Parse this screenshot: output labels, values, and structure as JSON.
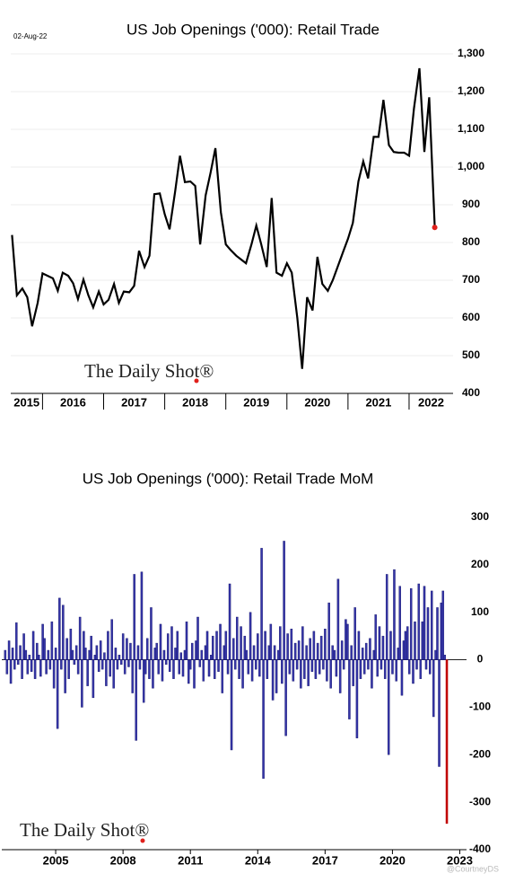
{
  "chart_data": [
    {
      "type": "line",
      "title": "US Job Openings ('000): Retail Trade",
      "date": "02-Aug-22",
      "watermark": "The Daily Shot®",
      "color": "#000000",
      "marker_color": "#e0201b",
      "grid": true,
      "x": [
        2015.5,
        2015.58,
        2015.67,
        2015.75,
        2015.83,
        2015.92,
        2016.0,
        2016.08,
        2016.17,
        2016.25,
        2016.33,
        2016.42,
        2016.5,
        2016.58,
        2016.67,
        2016.75,
        2016.83,
        2016.92,
        2017.0,
        2017.08,
        2017.17,
        2017.25,
        2017.33,
        2017.42,
        2017.5,
        2017.58,
        2017.67,
        2017.75,
        2017.83,
        2017.92,
        2018.0,
        2018.08,
        2018.17,
        2018.25,
        2018.33,
        2018.42,
        2018.5,
        2018.58,
        2018.67,
        2018.75,
        2018.83,
        2018.92,
        2019.0,
        2019.08,
        2019.17,
        2019.25,
        2019.33,
        2019.42,
        2019.5,
        2019.58,
        2019.67,
        2019.75,
        2019.83,
        2019.92,
        2020.0,
        2020.08,
        2020.17,
        2020.25,
        2020.33,
        2020.42,
        2020.5,
        2020.58,
        2020.67,
        2020.75,
        2020.83,
        2020.92,
        2021.0,
        2021.08,
        2021.17,
        2021.25,
        2021.33,
        2021.42,
        2021.5,
        2021.58,
        2021.67,
        2021.75,
        2021.83,
        2021.92,
        2022.0,
        2022.08,
        2022.17,
        2022.25,
        2022.33,
        2022.42
      ],
      "values": [
        820,
        660,
        678,
        655,
        578,
        640,
        718,
        712,
        705,
        672,
        720,
        712,
        692,
        650,
        702,
        660,
        628,
        670,
        636,
        648,
        690,
        640,
        670,
        668,
        685,
        778,
        735,
        765,
        928,
        930,
        875,
        835,
        935,
        1030,
        960,
        962,
        950,
        795,
        925,
        985,
        1050,
        880,
        795,
        780,
        765,
        755,
        745,
        795,
        845,
        795,
        735,
        918,
        720,
        712,
        745,
        720,
        600,
        465,
        655,
        620,
        762,
        690,
        672,
        700,
        735,
        775,
        810,
        852,
        962,
        1015,
        970,
        1080,
        1080,
        1178,
        1058,
        1040,
        1038,
        1038,
        1030,
        1155,
        1262,
        1040,
        1185,
        840
      ],
      "xlim": [
        2015.48,
        2022.72
      ],
      "xticks": [
        2015,
        2016,
        2017,
        2018,
        2019,
        2020,
        2021,
        2022
      ],
      "ylim": [
        400,
        1300
      ],
      "yticks": [
        400,
        500,
        600,
        700,
        800,
        900,
        {
          "value": 1000,
          "label": "1,000"
        },
        {
          "value": 1100,
          "label": "1,100"
        },
        {
          "value": 1200,
          "label": "1,200"
        },
        {
          "value": 1300,
          "label": "1,300"
        }
      ]
    },
    {
      "type": "bar",
      "title": "US Job Openings ('000): Retail Trade MoM",
      "watermark": "The Daily Shot®",
      "credit": "@CourtneyDS",
      "color": "#3535a8",
      "last_color": "#c00000",
      "grid": false,
      "x": [
        2002.75,
        2002.83,
        2002.92,
        2003.0,
        2003.08,
        2003.17,
        2003.25,
        2003.33,
        2003.42,
        2003.5,
        2003.58,
        2003.67,
        2003.75,
        2003.83,
        2003.92,
        2004.0,
        2004.08,
        2004.17,
        2004.25,
        2004.33,
        2004.42,
        2004.5,
        2004.58,
        2004.67,
        2004.75,
        2004.83,
        2004.92,
        2005.0,
        2005.08,
        2005.17,
        2005.25,
        2005.33,
        2005.42,
        2005.5,
        2005.58,
        2005.67,
        2005.75,
        2005.83,
        2005.92,
        2006.0,
        2006.08,
        2006.17,
        2006.25,
        2006.33,
        2006.42,
        2006.5,
        2006.58,
        2006.67,
        2006.75,
        2006.83,
        2006.92,
        2007.0,
        2007.08,
        2007.17,
        2007.25,
        2007.33,
        2007.42,
        2007.5,
        2007.58,
        2007.67,
        2007.75,
        2007.83,
        2007.92,
        2008.0,
        2008.08,
        2008.17,
        2008.25,
        2008.33,
        2008.42,
        2008.5,
        2008.58,
        2008.67,
        2008.75,
        2008.83,
        2008.92,
        2009.0,
        2009.08,
        2009.17,
        2009.25,
        2009.33,
        2009.42,
        2009.5,
        2009.58,
        2009.67,
        2009.75,
        2009.83,
        2009.92,
        2010.0,
        2010.08,
        2010.17,
        2010.25,
        2010.33,
        2010.42,
        2010.5,
        2010.58,
        2010.67,
        2010.75,
        2010.83,
        2010.92,
        2011.0,
        2011.08,
        2011.17,
        2011.25,
        2011.33,
        2011.42,
        2011.5,
        2011.58,
        2011.67,
        2011.75,
        2011.83,
        2011.92,
        2012.0,
        2012.08,
        2012.17,
        2012.25,
        2012.33,
        2012.42,
        2012.5,
        2012.58,
        2012.67,
        2012.75,
        2012.83,
        2012.92,
        2013.0,
        2013.08,
        2013.17,
        2013.25,
        2013.33,
        2013.42,
        2013.5,
        2013.58,
        2013.67,
        2013.75,
        2013.83,
        2013.92,
        2014.0,
        2014.08,
        2014.17,
        2014.25,
        2014.33,
        2014.42,
        2014.5,
        2014.58,
        2014.67,
        2014.75,
        2014.83,
        2014.92,
        2015.0,
        2015.08,
        2015.17,
        2015.25,
        2015.33,
        2015.42,
        2015.5,
        2015.58,
        2015.67,
        2015.75,
        2015.83,
        2015.92,
        2016.0,
        2016.08,
        2016.17,
        2016.25,
        2016.33,
        2016.42,
        2016.5,
        2016.58,
        2016.67,
        2016.75,
        2016.83,
        2016.92,
        2017.0,
        2017.08,
        2017.17,
        2017.25,
        2017.33,
        2017.42,
        2017.5,
        2017.58,
        2017.67,
        2017.75,
        2017.83,
        2017.92,
        2018.0,
        2018.08,
        2018.17,
        2018.25,
        2018.33,
        2018.42,
        2018.5,
        2018.58,
        2018.67,
        2018.75,
        2018.83,
        2018.92,
        2019.0,
        2019.08,
        2019.17,
        2019.25,
        2019.33,
        2019.42,
        2019.5,
        2019.58,
        2019.67,
        2019.75,
        2019.83,
        2019.92,
        2020.0,
        2020.08,
        2020.17,
        2020.25,
        2020.33,
        2020.42,
        2020.5,
        2020.58,
        2020.67,
        2020.75,
        2020.83,
        2020.92,
        2021.0,
        2021.08,
        2021.17,
        2021.25,
        2021.33,
        2021.42,
        2021.5,
        2021.58,
        2021.67,
        2021.75,
        2021.83,
        2021.92,
        2022.0,
        2022.08,
        2022.17,
        2022.25,
        2022.33,
        2022.42
      ],
      "values": [
        20,
        -30,
        40,
        -50,
        25,
        -20,
        78,
        -10,
        30,
        -40,
        55,
        20,
        -30,
        10,
        -25,
        60,
        -40,
        35,
        10,
        -35,
        75,
        45,
        -30,
        20,
        -20,
        80,
        -60,
        25,
        -145,
        130,
        -20,
        115,
        -70,
        45,
        -40,
        65,
        20,
        -10,
        30,
        -30,
        90,
        -100,
        60,
        25,
        -55,
        20,
        50,
        -80,
        10,
        30,
        -25,
        40,
        -20,
        15,
        -55,
        60,
        -35,
        85,
        -60,
        25,
        -20,
        10,
        -10,
        55,
        -30,
        45,
        -15,
        35,
        -70,
        180,
        -170,
        30,
        -20,
        185,
        -90,
        -30,
        45,
        -40,
        110,
        -60,
        25,
        35,
        -30,
        75,
        -45,
        20,
        -10,
        55,
        -25,
        70,
        -40,
        25,
        60,
        -30,
        15,
        -35,
        20,
        80,
        -50,
        -20,
        35,
        -60,
        40,
        90,
        -15,
        20,
        -45,
        30,
        60,
        -35,
        10,
        50,
        -40,
        60,
        -25,
        75,
        -70,
        30,
        60,
        -30,
        160,
        -190,
        45,
        -20,
        90,
        -40,
        70,
        -60,
        50,
        20,
        -30,
        100,
        -45,
        30,
        -20,
        55,
        -35,
        235,
        -250,
        60,
        -40,
        30,
        75,
        -85,
        30,
        -70,
        20,
        70,
        -50,
        250,
        -160,
        55,
        -30,
        65,
        -45,
        35,
        -20,
        40,
        -60,
        70,
        -40,
        30,
        -55,
        45,
        -25,
        60,
        -40,
        35,
        -30,
        50,
        -20,
        65,
        -45,
        120,
        -60,
        30,
        20,
        -35,
        170,
        -70,
        40,
        -20,
        85,
        75,
        -125,
        30,
        -55,
        110,
        -165,
        60,
        -40,
        25,
        -30,
        35,
        -20,
        45,
        -60,
        20,
        95,
        -35,
        70,
        -20,
        50,
        -40,
        180,
        -200,
        60,
        -30,
        190,
        -45,
        25,
        155,
        -75,
        40,
        60,
        70,
        -30,
        150,
        -50,
        80,
        -20,
        160,
        -40,
        80,
        155,
        -20,
        110,
        -30,
        145,
        -120,
        20,
        110,
        -225,
        120,
        145,
        10,
        -345
      ],
      "xlim": [
        2002.6,
        2023.3
      ],
      "xticks": [
        2005,
        2008,
        2011,
        2014,
        2017,
        2020,
        2023
      ],
      "ylim": [
        -400,
        300
      ],
      "yticks": [
        -400,
        -300,
        -200,
        -100,
        0,
        100,
        200,
        300
      ]
    }
  ]
}
